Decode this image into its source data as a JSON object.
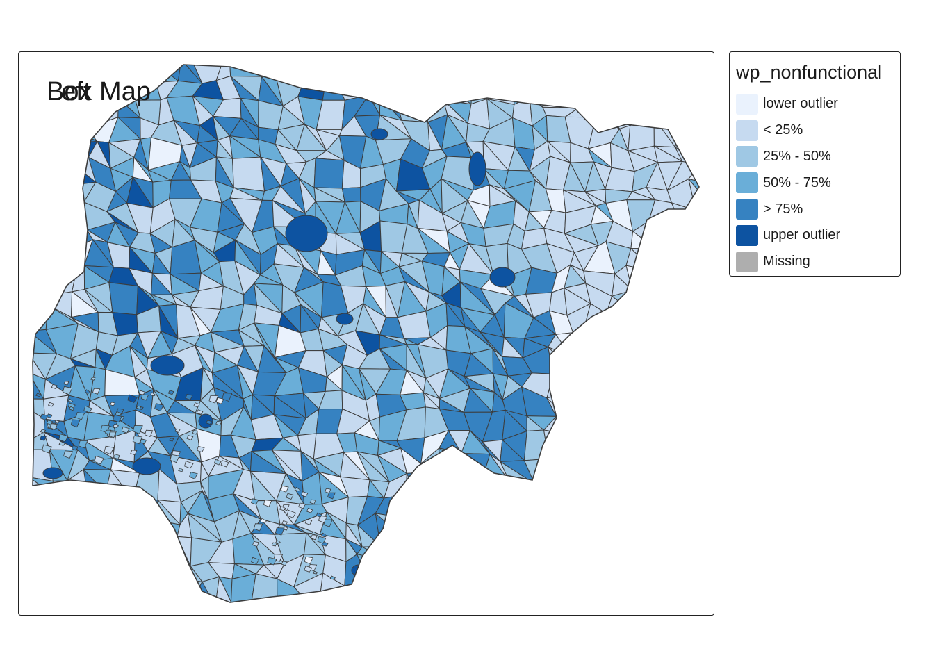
{
  "map": {
    "titles": [
      "Box Map",
      "Left"
    ],
    "boundary_color": "#3c3c3c",
    "region": "Nigeria local government areas"
  },
  "legend": {
    "title": "wp_nonfunctional",
    "items": [
      {
        "label": "lower outlier",
        "color": "#eaf2fd"
      },
      {
        "label": "< 25%",
        "color": "#c6daf0"
      },
      {
        "label": "25% - 50%",
        "color": "#9fc8e4"
      },
      {
        "label": "50% - 75%",
        "color": "#6aaed8"
      },
      {
        "label": "> 75%",
        "color": "#3682c1"
      },
      {
        "label": "upper outlier",
        "color": "#0d53a1"
      },
      {
        "label": "Missing",
        "color": "#aeaeae"
      }
    ]
  }
}
